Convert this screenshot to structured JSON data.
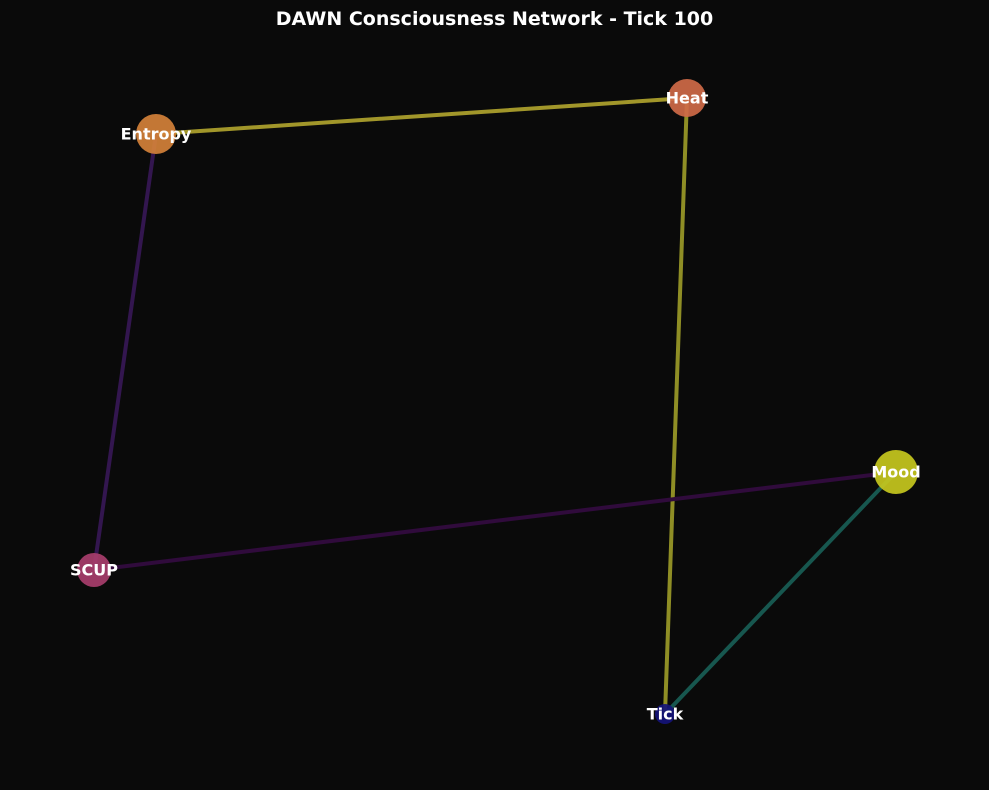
{
  "title": "DAWN Consciousness Network - Tick 100",
  "colors": {
    "background": "#0a0a0a",
    "text": "#ffffff"
  },
  "nodes": [
    {
      "id": "entropy",
      "label": "Entropy",
      "color": "#d4813a"
    },
    {
      "id": "heat",
      "label": "Heat",
      "color": "#cf6a48"
    },
    {
      "id": "mood",
      "label": "Mood",
      "color": "#c7c81e"
    },
    {
      "id": "scup",
      "label": "SCUP",
      "color": "#a83e6c"
    },
    {
      "id": "tick",
      "label": "Tick",
      "color": "#15137a"
    }
  ],
  "edges": [
    {
      "source": "entropy",
      "target": "heat",
      "color": "#a1962a"
    },
    {
      "source": "entropy",
      "target": "scup",
      "color": "#33164f"
    },
    {
      "source": "heat",
      "target": "tick",
      "color": "#8f8e25"
    },
    {
      "source": "scup",
      "target": "mood",
      "color": "#300b3c"
    },
    {
      "source": "mood",
      "target": "tick",
      "color": "#17574f"
    }
  ]
}
